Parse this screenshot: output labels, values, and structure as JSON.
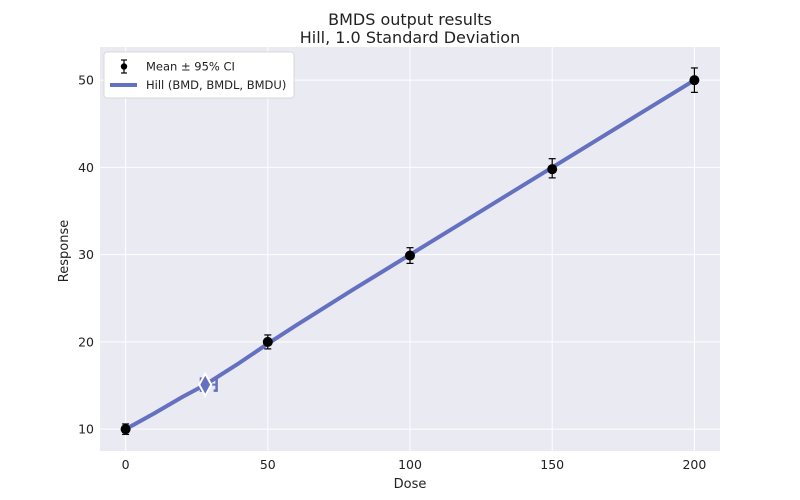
{
  "chart_data": {
    "type": "line",
    "title": "BMDS output results",
    "subtitle": "Hill, 1.0 Standard Deviation",
    "xlabel": "Dose",
    "ylabel": "Response",
    "xlim": [
      -9,
      209
    ],
    "ylim": [
      7.5,
      53.8
    ],
    "x_ticks": [
      0,
      50,
      100,
      150,
      200
    ],
    "y_ticks": [
      10,
      20,
      30,
      40,
      50
    ],
    "grid": true,
    "legend_position": "top-left",
    "legend": [
      "Mean ± 95% CI",
      "Hill (BMD, BMDL, BMDU)"
    ],
    "observed": {
      "name": "Mean ± 95% CI",
      "x": [
        0,
        50,
        100,
        150,
        200
      ],
      "y": [
        10.0,
        20.0,
        29.9,
        39.8,
        50.0
      ],
      "ci_lower": [
        9.4,
        19.2,
        29.0,
        38.8,
        48.6
      ],
      "ci_upper": [
        10.6,
        20.8,
        30.8,
        41.0,
        51.4
      ]
    },
    "fit": {
      "name": "Hill (BMD, BMDL, BMDU)",
      "x": [
        0,
        10,
        20,
        28,
        40,
        50,
        60,
        80,
        100,
        120,
        150,
        180,
        200
      ],
      "y": [
        10.0,
        11.8,
        13.7,
        15.1,
        17.6,
        19.8,
        21.9,
        26.0,
        30.0,
        34.0,
        40.0,
        46.0,
        50.0
      ]
    },
    "bmd": {
      "x": 28,
      "y": 15.1,
      "bmdl": 26.5,
      "bmdu": 32.0
    },
    "colors": {
      "background": "#eaeaf2",
      "grid": "#ffffff",
      "fit_line": "#6470c0",
      "points": "#000000"
    }
  }
}
